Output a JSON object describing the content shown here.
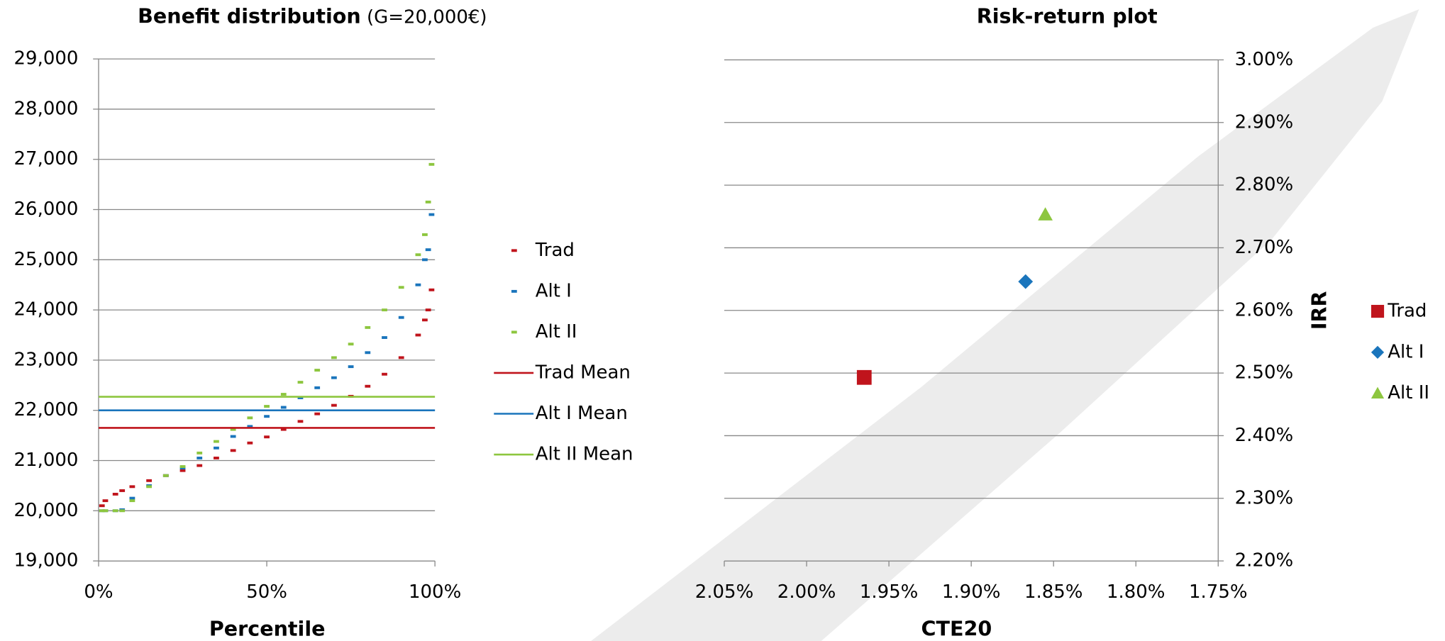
{
  "chart_data": [
    {
      "type": "line",
      "title": "Benefit distribution",
      "subtitle": "(G=20,000€)",
      "x_label": "Percentile",
      "x": [
        1,
        2,
        5,
        7,
        10,
        15,
        20,
        25,
        30,
        35,
        40,
        45,
        50,
        55,
        60,
        65,
        70,
        75,
        80,
        85,
        90,
        95,
        97,
        98,
        99
      ],
      "series": [
        {
          "name": "Trad",
          "color": "#c0141c",
          "values": [
            20100,
            20200,
            20330,
            20400,
            20480,
            20600,
            20700,
            20800,
            20900,
            21050,
            21200,
            21350,
            21470,
            21620,
            21780,
            21930,
            22100,
            22280,
            22480,
            22720,
            23050,
            23500,
            23800,
            24000,
            24400
          ]
        },
        {
          "name": "Alt I",
          "color": "#1a75bc",
          "values": [
            20000,
            20000,
            20000,
            20020,
            20250,
            20500,
            20700,
            20850,
            21050,
            21250,
            21480,
            21680,
            21880,
            22060,
            22250,
            22450,
            22650,
            22870,
            23150,
            23450,
            23850,
            24500,
            25000,
            25200,
            25900
          ]
        },
        {
          "name": "Alt II",
          "color": "#8dc63f",
          "values": [
            20000,
            20000,
            20000,
            20000,
            20200,
            20480,
            20700,
            20880,
            21150,
            21380,
            21620,
            21850,
            22080,
            22320,
            22560,
            22800,
            23050,
            23320,
            23650,
            24000,
            24450,
            25100,
            25500,
            26150,
            26900
          ]
        }
      ],
      "mean_lines": [
        {
          "name": "Trad Mean",
          "color": "#c0141c",
          "value": 21650
        },
        {
          "name": "Alt I Mean",
          "color": "#1a75bc",
          "value": 22000
        },
        {
          "name": "Alt II Mean",
          "color": "#8dc63f",
          "value": 22270
        }
      ],
      "marker": "dash",
      "xlim": [
        0,
        100
      ],
      "xticks": [
        {
          "value": 0,
          "label": "0%"
        },
        {
          "value": 50,
          "label": "50%"
        },
        {
          "value": 100,
          "label": "100%"
        }
      ],
      "ylim": [
        19000,
        29000
      ],
      "yticks": [
        {
          "value": 19000,
          "label": "19,000"
        },
        {
          "value": 20000,
          "label": "20,000"
        },
        {
          "value": 21000,
          "label": "21,000"
        },
        {
          "value": 22000,
          "label": "22,000"
        },
        {
          "value": 23000,
          "label": "23,000"
        },
        {
          "value": 24000,
          "label": "24,000"
        },
        {
          "value": 25000,
          "label": "25,000"
        },
        {
          "value": 26000,
          "label": "26,000"
        },
        {
          "value": 27000,
          "label": "27,000"
        },
        {
          "value": 28000,
          "label": "28,000"
        },
        {
          "value": 29000,
          "label": "29,000"
        }
      ],
      "grid": true,
      "legend": "right"
    },
    {
      "type": "scatter",
      "title": "Risk-return plot",
      "x_label": "CTE20",
      "y_label": "IRR",
      "series": [
        {
          "name": "Trad",
          "color": "#c0141c",
          "marker": "square",
          "x": [
            1.965
          ],
          "values": [
            2.493
          ]
        },
        {
          "name": "Alt I",
          "color": "#1a75bc",
          "marker": "diamond",
          "x": [
            1.867
          ],
          "values": [
            2.646
          ]
        },
        {
          "name": "Alt II",
          "color": "#8dc63f",
          "marker": "triangle",
          "x": [
            1.855
          ],
          "values": [
            2.753
          ]
        }
      ],
      "xlim": [
        2.05,
        1.75
      ],
      "xticks": [
        {
          "value": 2.05,
          "label": "2.05%"
        },
        {
          "value": 2.0,
          "label": "2.00%"
        },
        {
          "value": 1.95,
          "label": "1.95%"
        },
        {
          "value": 1.9,
          "label": "1.90%"
        },
        {
          "value": 1.85,
          "label": "1.85%"
        },
        {
          "value": 1.8,
          "label": "1.80%"
        },
        {
          "value": 1.75,
          "label": "1.75%"
        }
      ],
      "ylim": [
        2.2,
        3.0
      ],
      "yticks": [
        {
          "value": 2.2,
          "label": "2.20%"
        },
        {
          "value": 2.3,
          "label": "2.30%"
        },
        {
          "value": 2.4,
          "label": "2.40%"
        },
        {
          "value": 2.5,
          "label": "2.50%"
        },
        {
          "value": 2.6,
          "label": "2.60%"
        },
        {
          "value": 2.7,
          "label": "2.70%"
        },
        {
          "value": 2.8,
          "label": "2.80%"
        },
        {
          "value": 2.9,
          "label": "2.90%"
        },
        {
          "value": 3.0,
          "label": "3.00%"
        }
      ],
      "y_axis_side": "right",
      "grid": true,
      "legend": "right"
    }
  ]
}
